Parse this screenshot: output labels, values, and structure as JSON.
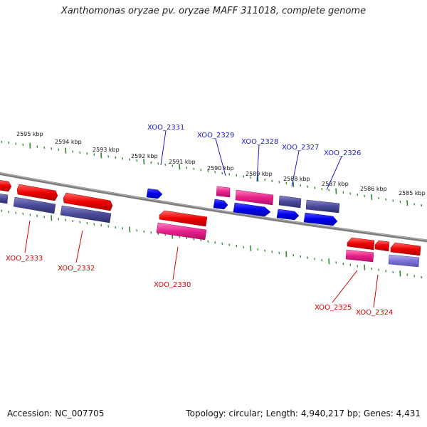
{
  "title": "Xanthomonas oryzae pv. oryzae MAFF 311018, complete genome",
  "accession": "Accession: NC_007705",
  "topology": "Topology: circular; Length: 4,940,217 bp; Genes: 4,431",
  "colors": {
    "backbone": "#8a8a8a",
    "tick": "#2e8b2e",
    "gene_red": "#ee0000",
    "gene_blue": "#0000ee",
    "gene_navy": "#4a4a9a",
    "gene_pink": "#e8208a",
    "gene_lavender": "#7c74d8",
    "label_blue": "#1a1ad6",
    "label_red": "#d60000"
  },
  "scale_labels": [
    "2595 kbp",
    "2594 kbp",
    "2593 kbp",
    "2592 kbp",
    "2591 kbp",
    "2590 kbp",
    "2589 kbp",
    "2588 kbp",
    "2587 kbp",
    "2586 kbp",
    "2585 kbp"
  ],
  "gene_labels_top": [
    "XOO_2331",
    "XOO_2329",
    "XOO_2328",
    "XOO_2327",
    "XOO_2326"
  ],
  "gene_labels_bottom": [
    "XOO_2333",
    "XOO_2332",
    "XOO_2330",
    "XOO_2325",
    "XOO_2324"
  ]
}
